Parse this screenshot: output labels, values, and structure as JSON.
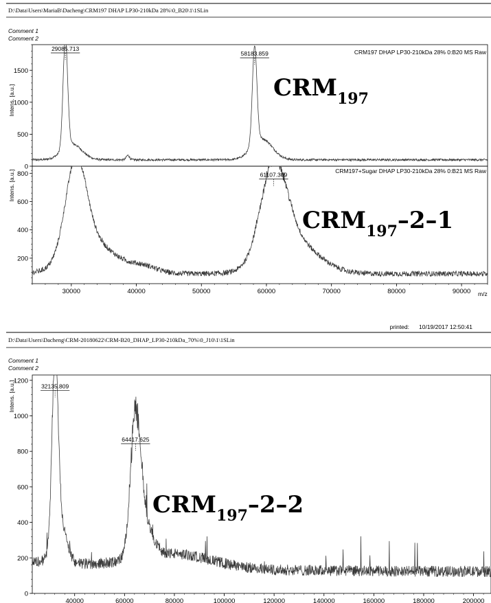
{
  "header1": {
    "path": "D:\\Data\\Users\\MariaB\\Dacheng\\CRM197 DHAP LP30-210kDa 28%\\0_B20\\1\\1SLin",
    "comment1": "Comment 1",
    "comment2": "Comment 2"
  },
  "printed": {
    "label": "printed:",
    "value": "10/19/2017  12:50:41"
  },
  "header2": {
    "path": "D:\\Data\\Users\\Dacheng\\CRM-20180622\\CRM-B20_DHAP_LP30-210kDa_70%\\0_J10\\1\\1SLin",
    "comment1": "Comment 1",
    "comment2": "Comment 2"
  },
  "big_labels": {
    "a_main": "CRM",
    "a_sub": "197",
    "b_main": "CRM",
    "b_sub": "197",
    "b_tail": "–2–1",
    "c_main": "CRM",
    "c_sub": "197",
    "c_tail": "–2–2"
  },
  "colors": {
    "trace": "#3a3a3a",
    "axis": "#000000"
  },
  "chart_data": [
    {
      "type": "line",
      "panel": "top-upper",
      "title": "CRM197 DHAP LP30-210kDa 28% 0:B20 MS Raw",
      "ylabel": "Intens. [a.u.]",
      "xlabel": "m/z",
      "xlim": [
        24000,
        94000
      ],
      "ylim": [
        0,
        1900
      ],
      "yticks": [
        0,
        500,
        1000,
        1500
      ],
      "baseline": 100,
      "peaks": [
        {
          "x": 29085.713,
          "y": 1720,
          "width": 350,
          "label": "29085.713"
        },
        {
          "x": 30100,
          "y": 250,
          "width": 1500,
          "label": ""
        },
        {
          "x": 38700,
          "y": 70,
          "width": 250,
          "label": ""
        },
        {
          "x": 58183.859,
          "y": 1530,
          "width": 350,
          "label": "58183.859"
        },
        {
          "x": 59300,
          "y": 330,
          "width": 1600,
          "label": ""
        }
      ]
    },
    {
      "type": "line",
      "panel": "top-lower",
      "title": "CRM197+Sugar DHAP LP30-210kDa 28% 0:B21 MS Raw",
      "ylabel": "Intens. [a.u.]",
      "xlabel": "m/z",
      "xlim": [
        24000,
        94000
      ],
      "xticks": [
        30000,
        40000,
        50000,
        60000,
        70000,
        80000,
        90000
      ],
      "ylim": [
        20,
        850
      ],
      "yticks": [
        200,
        400,
        600,
        800
      ],
      "baseline": 90,
      "peaks": [
        {
          "x": 30700,
          "y": 640,
          "width": 1600,
          "label": ""
        },
        {
          "x": 33000,
          "y": 230,
          "width": 3500,
          "label": ""
        },
        {
          "x": 41000,
          "y": 50,
          "width": 2200,
          "label": ""
        },
        {
          "x": 61107.309,
          "y": 640,
          "width": 2000,
          "label": "61107.309"
        },
        {
          "x": 64000,
          "y": 230,
          "width": 3800,
          "label": ""
        }
      ]
    },
    {
      "type": "line",
      "panel": "bottom",
      "ylabel": "Intens. [a.u.]",
      "xlabel": "m/z",
      "xlim": [
        23000,
        207000
      ],
      "xticks": [
        40000,
        60000,
        80000,
        100000,
        120000,
        140000,
        160000,
        180000,
        200000
      ],
      "ylim": [
        0,
        1230
      ],
      "yticks": [
        0,
        200,
        400,
        600,
        800,
        1000,
        1200
      ],
      "baseline": 120,
      "peaks": [
        {
          "x": 32135.809,
          "y": 1000,
          "width": 1200,
          "label": "32135.809"
        },
        {
          "x": 33800,
          "y": 250,
          "width": 2600,
          "label": ""
        },
        {
          "x": 64417.625,
          "y": 700,
          "width": 2000,
          "label": "64417.625"
        },
        {
          "x": 67500,
          "y": 200,
          "width": 3500,
          "label": ""
        },
        {
          "x": 80000,
          "y": 80,
          "width": 15000,
          "label": ""
        }
      ]
    }
  ]
}
